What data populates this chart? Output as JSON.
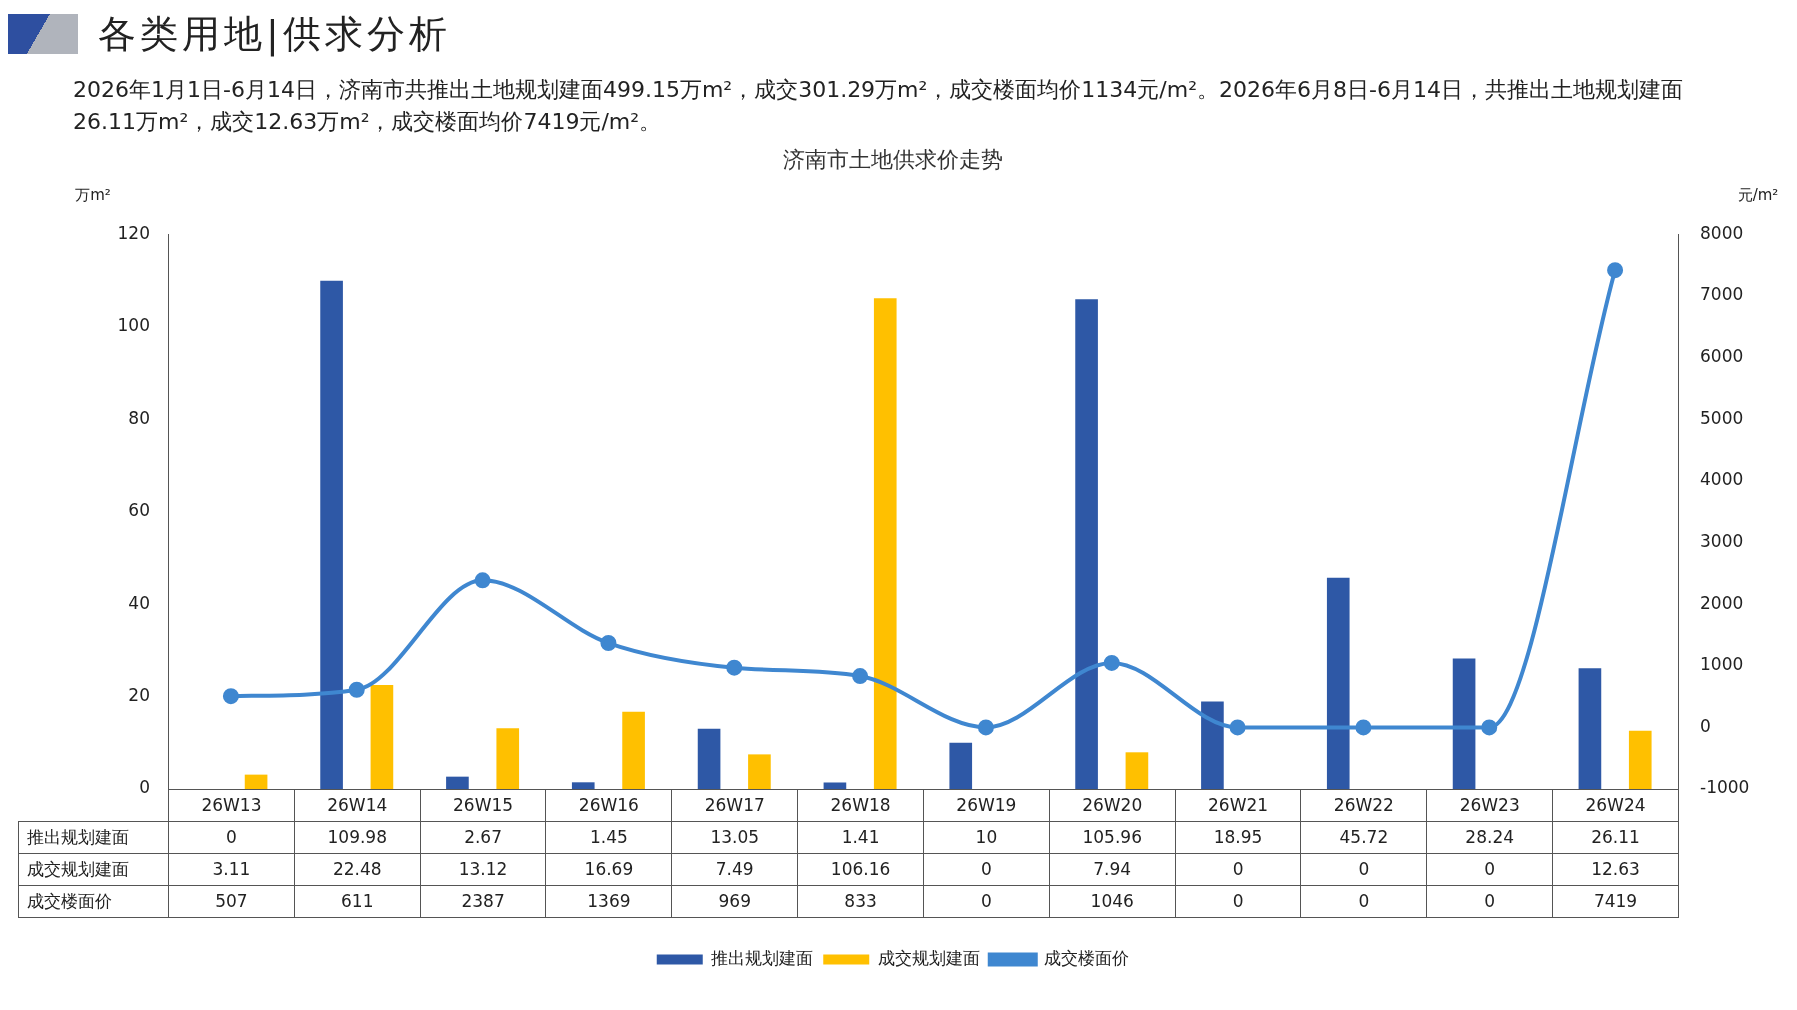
{
  "chart_data": {
    "type": "bar",
    "title": "济南市土地供求价走势",
    "annotations": [
      "各类用地|供求分析",
      "2026年1月1日-6月14日，济南市共推出土地规划建面499.15万m²，成交301.29万m²，成交楼面均价1134元/m²。2026年6月8日-6月14日，共推出土地规划建面26.11万m²，成交12.63万m²，成交楼面均价7419元/m²。"
    ],
    "ylabel": "万m²",
    "y2label": "元/m²",
    "categories": [
      "26W13",
      "26W14",
      "26W15",
      "26W16",
      "26W17",
      "26W18",
      "26W19",
      "26W20",
      "26W21",
      "26W22",
      "26W23",
      "26W24"
    ],
    "series": [
      {
        "name": "推出规划建面",
        "color": "#2e58a6",
        "values": [
          0,
          109.98,
          2.67,
          1.45,
          13.05,
          1.41,
          10,
          105.96,
          18.95,
          45.72,
          28.24,
          26.11
        ]
      },
      {
        "name": "成交规划建面",
        "color": "#ffc000",
        "values": [
          3.11,
          22.48,
          13.12,
          16.69,
          7.49,
          106.16,
          0,
          7.94,
          0,
          0,
          0,
          12.63
        ]
      },
      {
        "name": "成交楼面价",
        "type": "line",
        "axis": "y2",
        "color": "#3f87d0",
        "marker": "circle",
        "values": [
          507,
          611,
          2387,
          1369,
          969,
          833,
          0,
          1046,
          0,
          0,
          0,
          7419
        ]
      }
    ],
    "ylim": [
      0,
      120
    ],
    "yticks": [
      0,
      20,
      40,
      60,
      80,
      100,
      120
    ],
    "y2lim": [
      -1000,
      8000
    ],
    "y2ticks": [
      -1000,
      0,
      1000,
      2000,
      3000,
      4000,
      5000,
      6000,
      7000,
      8000
    ],
    "data_labels": true,
    "legend": "bottom",
    "grid": false
  }
}
